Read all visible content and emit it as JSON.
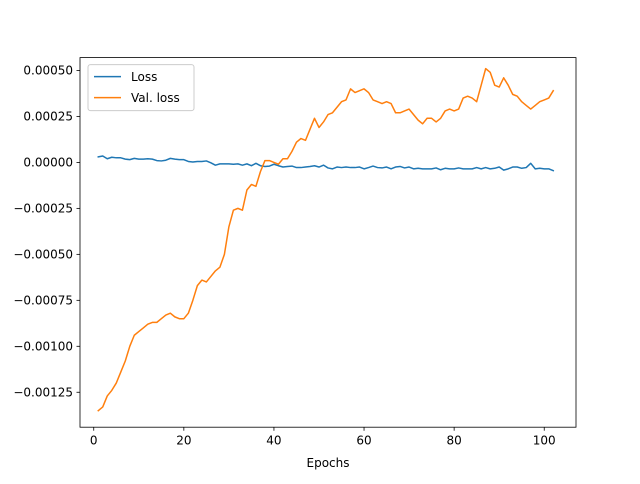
{
  "chart_data": {
    "type": "line",
    "title": "",
    "xlabel": "Epochs",
    "ylabel": "",
    "xlim": [
      -3.05,
      107.05
    ],
    "ylim": [
      -0.00144,
      0.00057
    ],
    "xticks": [
      0,
      20,
      40,
      60,
      80,
      100
    ],
    "xtick_labels": [
      "0",
      "20",
      "40",
      "60",
      "80",
      "100"
    ],
    "yticks": [
      0.0005,
      0.00025,
      0,
      -0.00025,
      -0.0005,
      -0.00075,
      -0.001,
      -0.00125
    ],
    "ytick_labels": [
      "0.00050",
      "0.00025",
      "0.00000",
      "−0.00025",
      "−0.00050",
      "−0.00075",
      "−0.00100",
      "−0.00125"
    ],
    "grid": false,
    "legend": "top-left",
    "x": [
      1,
      2,
      3,
      4,
      5,
      6,
      7,
      8,
      9,
      10,
      11,
      12,
      13,
      14,
      15,
      16,
      17,
      18,
      19,
      20,
      21,
      22,
      23,
      24,
      25,
      26,
      27,
      28,
      29,
      30,
      31,
      32,
      33,
      34,
      35,
      36,
      37,
      38,
      39,
      40,
      41,
      42,
      43,
      44,
      45,
      46,
      47,
      48,
      49,
      50,
      51,
      52,
      53,
      54,
      55,
      56,
      57,
      58,
      59,
      60,
      61,
      62,
      63,
      64,
      65,
      66,
      67,
      68,
      69,
      70,
      71,
      72,
      73,
      74,
      75,
      76,
      77,
      78,
      79,
      80,
      81,
      82,
      83,
      84,
      85,
      86,
      87,
      88,
      89,
      90,
      91,
      92,
      93,
      94,
      95,
      96,
      97,
      98,
      99,
      100,
      101,
      102
    ],
    "series": [
      {
        "name": "Loss",
        "color": "#1f77b4",
        "values": [
          3e-05,
          3.5e-05,
          2e-05,
          2.8e-05,
          2.5e-05,
          2.5e-05,
          1.8e-05,
          1.5e-05,
          2.2e-05,
          1.8e-05,
          1.8e-05,
          2e-05,
          1.8e-05,
          1e-05,
          8e-06,
          1.2e-05,
          2.2e-05,
          1.8e-05,
          1.5e-05,
          1.5e-05,
          5e-06,
          2e-06,
          5e-06,
          5e-06,
          8e-06,
          -2e-06,
          -1.5e-05,
          -8e-06,
          -8e-06,
          -8e-06,
          -1e-05,
          -8e-06,
          -1.5e-05,
          -8e-06,
          -1.8e-05,
          -5e-06,
          -1.8e-05,
          -2.2e-05,
          -2e-05,
          -1e-05,
          -1.8e-05,
          -2.5e-05,
          -2.2e-05,
          -2e-05,
          -2.8e-05,
          -2.8e-05,
          -2.5e-05,
          -2.2e-05,
          -1.8e-05,
          -2.5e-05,
          -1.5e-05,
          -3e-05,
          -3.5e-05,
          -2.5e-05,
          -2.8e-05,
          -2.5e-05,
          -2.8e-05,
          -2.8e-05,
          -2.5e-05,
          -3.5e-05,
          -2.8e-05,
          -2e-05,
          -2.8e-05,
          -3e-05,
          -2.5e-05,
          -3.5e-05,
          -2.5e-05,
          -2.2e-05,
          -3e-05,
          -2.5e-05,
          -3.5e-05,
          -3.2e-05,
          -3.5e-05,
          -3.5e-05,
          -3.5e-05,
          -3e-05,
          -4e-05,
          -3.2e-05,
          -3.5e-05,
          -3.5e-05,
          -3e-05,
          -3.5e-05,
          -3.5e-05,
          -3.5e-05,
          -2.8e-05,
          -3.5e-05,
          -2.8e-05,
          -3.5e-05,
          -3.2e-05,
          -2.5e-05,
          -4.2e-05,
          -3.5e-05,
          -2.5e-05,
          -2.5e-05,
          -3.2e-05,
          -2.8e-05,
          -5e-06,
          -3.5e-05,
          -3.2e-05,
          -3.5e-05,
          -3.5e-05,
          -4.5e-05
        ]
      },
      {
        "name": "Val. loss",
        "color": "#ff7f0e",
        "values": [
          -0.00135,
          -0.00133,
          -0.00127,
          -0.00124,
          -0.0012,
          -0.00114,
          -0.00108,
          -0.001,
          -0.00094,
          -0.00092,
          -0.0009,
          -0.00088,
          -0.00087,
          -0.00087,
          -0.00085,
          -0.00083,
          -0.00082,
          -0.00084,
          -0.00085,
          -0.00085,
          -0.00082,
          -0.00075,
          -0.00067,
          -0.00064,
          -0.00065,
          -0.00062,
          -0.00059,
          -0.00057,
          -0.0005,
          -0.00035,
          -0.00026,
          -0.00025,
          -0.00026,
          -0.00015,
          -0.00012,
          -0.00013,
          -5e-05,
          1e-05,
          1e-05,
          0,
          -1e-05,
          2e-05,
          2e-05,
          6e-05,
          0.00011,
          0.00013,
          0.00012,
          0.00018,
          0.00024,
          0.00019,
          0.00022,
          0.00026,
          0.00027,
          0.0003,
          0.00033,
          0.00034,
          0.0004,
          0.00038,
          0.00039,
          0.0004,
          0.00038,
          0.00034,
          0.00033,
          0.00032,
          0.00033,
          0.00032,
          0.00027,
          0.00027,
          0.00028,
          0.00029,
          0.00026,
          0.00023,
          0.00021,
          0.00024,
          0.00024,
          0.00022,
          0.00024,
          0.00028,
          0.00029,
          0.00028,
          0.00029,
          0.00035,
          0.00036,
          0.00035,
          0.00033,
          0.00042,
          0.00051,
          0.00049,
          0.00042,
          0.00041,
          0.00046,
          0.00042,
          0.00037,
          0.00036,
          0.00033,
          0.00031,
          0.00029,
          0.00031,
          0.00033,
          0.00034,
          0.00035,
          0.00039
        ]
      }
    ]
  }
}
